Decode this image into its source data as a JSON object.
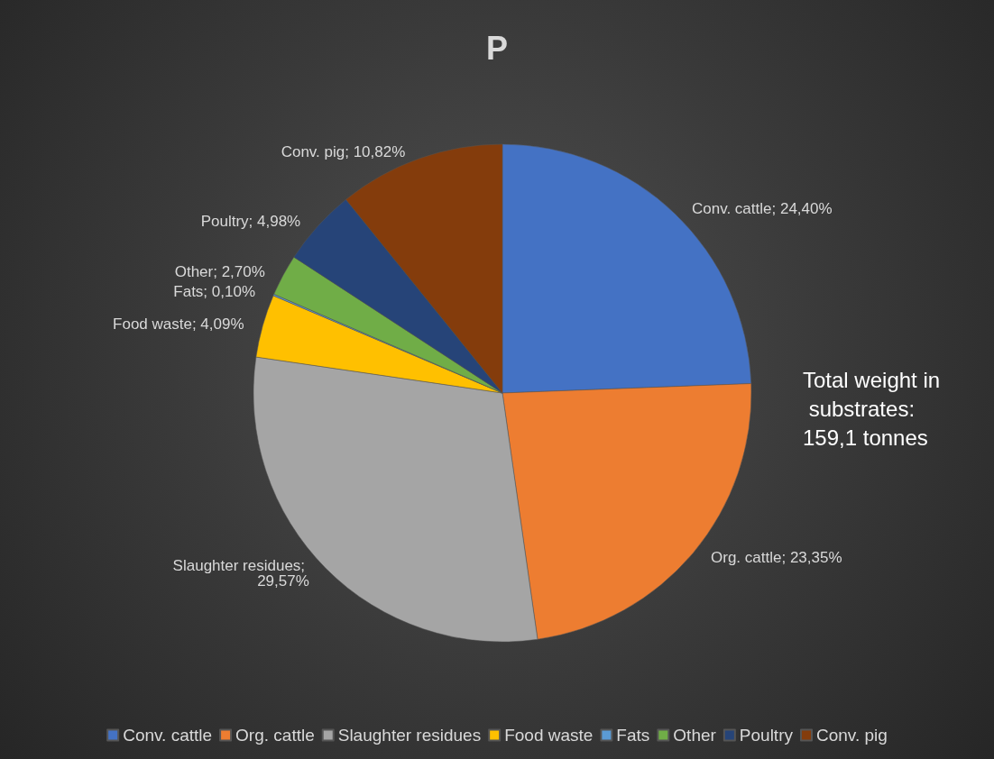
{
  "chart_data": {
    "type": "pie",
    "title": "P",
    "categories": [
      "Conv. cattle",
      "Org. cattle",
      "Slaughter residues",
      "Food waste",
      "Fats",
      "Other",
      "Poultry",
      "Conv. pig"
    ],
    "values": [
      24.4,
      23.35,
      29.57,
      4.09,
      0.1,
      2.7,
      4.98,
      10.82
    ],
    "value_labels": [
      "Conv. cattle; 24,40%",
      "Org. cattle; 23,35%",
      "Slaughter residues; 29,57%",
      "Food waste; 4,09%",
      "Fats; 0,10%",
      "Other; 2,70%",
      "Poultry; 4,98%",
      "Conv. pig; 10,82%"
    ],
    "colors": [
      "#4472c4",
      "#ed7d31",
      "#a5a5a5",
      "#ffc000",
      "#5b9bd5",
      "#70ad47",
      "#264478",
      "#843c0c"
    ],
    "annotations": [
      "Total weight in substrates: 159,1 tonnes"
    ],
    "legend": "bottom"
  }
}
